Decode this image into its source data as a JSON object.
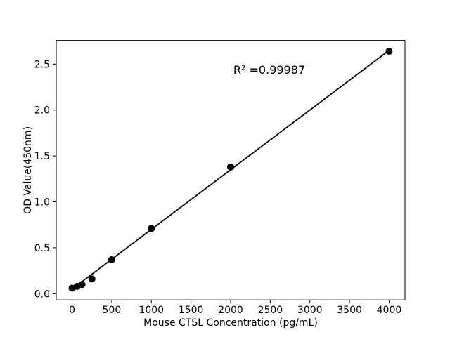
{
  "figure": {
    "background": "#ffffff",
    "foreground": "#000000"
  },
  "chart_data": {
    "type": "scatter",
    "title": "",
    "xlabel": "Mouse CTSL Concentration (pg/mL)",
    "ylabel": "OD Value(450nm)",
    "annotation": "R² =0.99987",
    "x": [
      0,
      62.5,
      125,
      250,
      500,
      1000,
      2000,
      4000
    ],
    "y": [
      0.06,
      0.08,
      0.1,
      0.16,
      0.37,
      0.71,
      1.38,
      2.64
    ],
    "trendline": {
      "x1": 0,
      "y1": 0.05,
      "x2": 4000,
      "y2": 2.65
    },
    "xticks": [
      0,
      500,
      1000,
      1500,
      2000,
      2500,
      3000,
      3500,
      4000
    ],
    "yticks": [
      "0.0",
      "0.5",
      "1.0",
      "1.5",
      "2.0",
      "2.5"
    ],
    "xlim": [
      -200,
      4200
    ],
    "ylim": [
      -0.068,
      2.758
    ],
    "grid": false,
    "legend": null,
    "marker_color": "#000000",
    "line_color": "#000000",
    "marker_radius": 5
  }
}
